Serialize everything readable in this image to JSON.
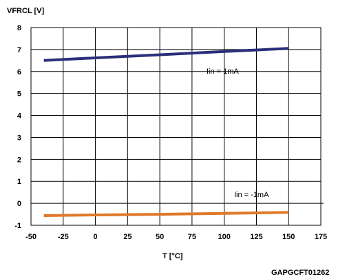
{
  "chart_data": {
    "type": "line",
    "ylabel": "VFRCL [V]",
    "xlabel": "T [°C]",
    "xlim": [
      -50,
      175
    ],
    "ylim": [
      -1,
      8
    ],
    "x_ticks": [
      "-50",
      "-25",
      "0",
      "25",
      "50",
      "75",
      "100",
      "125",
      "150",
      "175"
    ],
    "y_ticks": [
      "8",
      "7",
      "6",
      "5",
      "4",
      "3",
      "2",
      "1",
      "0",
      "-1"
    ],
    "grid": true,
    "series": [
      {
        "name": "Iin = 1mA",
        "color": "#2b2e7a",
        "x": [
          -40,
          0,
          50,
          100,
          150
        ],
        "y": [
          6.5,
          6.62,
          6.76,
          6.91,
          7.05
        ]
      },
      {
        "name": "Iin = -1mA",
        "color": "#e07828",
        "x": [
          -40,
          0,
          50,
          100,
          150
        ],
        "y": [
          -0.56,
          -0.53,
          -0.5,
          -0.46,
          -0.41
        ]
      }
    ],
    "annotations": [
      "Iin = 1mA",
      "Iin = -1mA"
    ],
    "code": "GAPGCFT01262"
  }
}
